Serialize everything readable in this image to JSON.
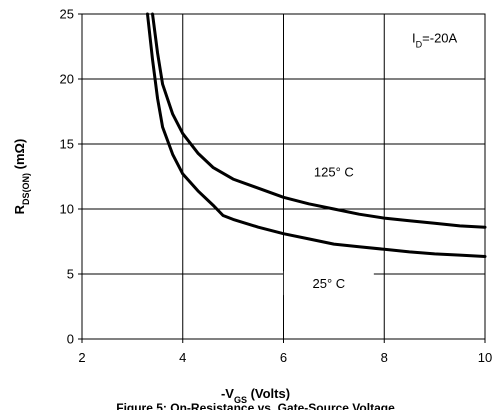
{
  "chart_data": {
    "type": "line",
    "xlabel": {
      "prefix": "-V",
      "sub": "GS",
      "suffix": " (Volts)"
    },
    "ylabel": {
      "prefix": "R",
      "sub": "DS(ON)",
      "suffix": " (mΩ)"
    },
    "xlim": [
      2,
      10
    ],
    "ylim": [
      0,
      25
    ],
    "xticks": [
      2,
      4,
      6,
      8,
      10
    ],
    "yticks": [
      0,
      5,
      10,
      15,
      20,
      25
    ],
    "grid": true,
    "annotations": [
      {
        "id": "id_note",
        "prefix": "I",
        "sub": "D",
        "suffix": "=-20A"
      },
      {
        "id": "label_125",
        "text": "125° C"
      },
      {
        "id": "label_25",
        "text": "25° C"
      }
    ],
    "series": [
      {
        "id": "125C",
        "x": [
          3.4,
          3.5,
          3.6,
          3.8,
          4.0,
          4.3,
          4.6,
          5.0,
          5.5,
          6.0,
          6.5,
          7.0,
          7.5,
          8.0,
          8.5,
          9.0,
          9.5,
          10.0
        ],
        "y": [
          25.0,
          22.0,
          19.6,
          17.3,
          15.8,
          14.3,
          13.2,
          12.3,
          11.6,
          10.9,
          10.4,
          10.0,
          9.6,
          9.3,
          9.1,
          8.9,
          8.7,
          8.6
        ]
      },
      {
        "id": "25C",
        "x": [
          3.3,
          3.4,
          3.5,
          3.6,
          3.8,
          4.0,
          4.3,
          4.6,
          4.8,
          5.0,
          5.5,
          6.0,
          6.5,
          7.0,
          7.5,
          8.0,
          8.5,
          9.0,
          9.5,
          10.0
        ],
        "y": [
          25.0,
          21.5,
          18.5,
          16.3,
          14.2,
          12.7,
          11.4,
          10.3,
          9.5,
          9.2,
          8.6,
          8.1,
          7.7,
          7.3,
          7.1,
          6.9,
          6.7,
          6.55,
          6.45,
          6.35
        ]
      }
    ],
    "caption": "Figure 5: On-Resistance vs. Gate-Source Voltage"
  }
}
